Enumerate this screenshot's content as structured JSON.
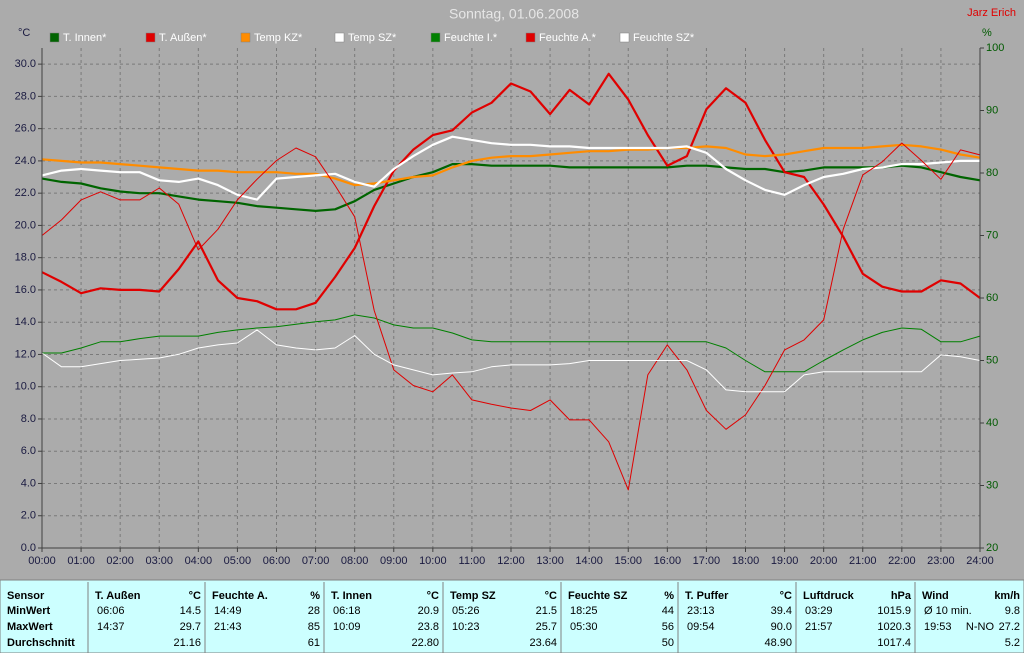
{
  "chart_data": {
    "type": "line",
    "title": "Sonntag, 01.06.2008",
    "annotation": "Jarz Erich",
    "y_label": "°C",
    "y2_label": "%",
    "grid": true,
    "legend": "top",
    "x": [
      0,
      0.5,
      1,
      1.5,
      2,
      2.5,
      3,
      3.5,
      4,
      4.5,
      5,
      5.5,
      6,
      6.5,
      7,
      7.5,
      8,
      8.5,
      9,
      9.5,
      10,
      10.5,
      11,
      11.5,
      12,
      12.5,
      13,
      13.5,
      14,
      14.5,
      15,
      15.5,
      16,
      16.5,
      17,
      17.5,
      18,
      18.5,
      19,
      19.5,
      20,
      20.5,
      21,
      21.5,
      22,
      22.5,
      23,
      23.5,
      24
    ],
    "xlim": [
      0,
      24
    ],
    "xticks": [
      {
        "value": 0,
        "label": "00:00"
      },
      {
        "value": 1,
        "label": "01:00"
      },
      {
        "value": 2,
        "label": "02:00"
      },
      {
        "value": 3,
        "label": "03:00"
      },
      {
        "value": 4,
        "label": "04:00"
      },
      {
        "value": 5,
        "label": "05:00"
      },
      {
        "value": 6,
        "label": "06:00"
      },
      {
        "value": 7,
        "label": "07:00"
      },
      {
        "value": 8,
        "label": "08:00"
      },
      {
        "value": 9,
        "label": "09:00"
      },
      {
        "value": 10,
        "label": "10:00"
      },
      {
        "value": 11,
        "label": "11:00"
      },
      {
        "value": 12,
        "label": "12:00"
      },
      {
        "value": 13,
        "label": "13:00"
      },
      {
        "value": 14,
        "label": "14:00"
      },
      {
        "value": 15,
        "label": "15:00"
      },
      {
        "value": 16,
        "label": "16:00"
      },
      {
        "value": 17,
        "label": "17:00"
      },
      {
        "value": 18,
        "label": "18:00"
      },
      {
        "value": 19,
        "label": "19:00"
      },
      {
        "value": 20,
        "label": "20:00"
      },
      {
        "value": 21,
        "label": "21:00"
      },
      {
        "value": 22,
        "label": "22:00"
      },
      {
        "value": 23,
        "label": "23:00"
      },
      {
        "value": 24,
        "label": "24:00"
      }
    ],
    "ylim": [
      0,
      31
    ],
    "yticks": [
      {
        "value": 0,
        "label": "0.0"
      },
      {
        "value": 2,
        "label": "2.0"
      },
      {
        "value": 4,
        "label": "4.0"
      },
      {
        "value": 6,
        "label": "6.0"
      },
      {
        "value": 8,
        "label": "8.0"
      },
      {
        "value": 10,
        "label": "10.0"
      },
      {
        "value": 12,
        "label": "12.0"
      },
      {
        "value": 14,
        "label": "14.0"
      },
      {
        "value": 16,
        "label": "16.0"
      },
      {
        "value": 18,
        "label": "18.0"
      },
      {
        "value": 20,
        "label": "20.0"
      },
      {
        "value": 22,
        "label": "22.0"
      },
      {
        "value": 24,
        "label": "24.0"
      },
      {
        "value": 26,
        "label": "26.0"
      },
      {
        "value": 28,
        "label": "28.0"
      },
      {
        "value": 30,
        "label": "30.0"
      }
    ],
    "y2lim": [
      20,
      100
    ],
    "y2ticks": [
      20,
      30,
      40,
      50,
      60,
      70,
      80,
      90,
      100
    ],
    "series": [
      {
        "name": "T. Innen*",
        "color": "#006400",
        "values": [
          22.9,
          22.7,
          22.6,
          22.3,
          22.1,
          22.0,
          22.0,
          21.8,
          21.6,
          21.5,
          21.4,
          21.2,
          21.1,
          21.0,
          20.9,
          21.0,
          21.5,
          22.2,
          22.6,
          23.0,
          23.3,
          23.8,
          23.8,
          23.7,
          23.7,
          23.7,
          23.7,
          23.6,
          23.6,
          23.6,
          23.6,
          23.6,
          23.6,
          23.7,
          23.7,
          23.6,
          23.5,
          23.5,
          23.3,
          23.4,
          23.6,
          23.6,
          23.6,
          23.6,
          23.7,
          23.6,
          23.3,
          23.0,
          22.8
        ]
      },
      {
        "name": "T. Außen*",
        "color": "#e00000",
        "values": [
          17.1,
          16.5,
          15.8,
          16.1,
          16.0,
          16.0,
          15.9,
          17.3,
          19.0,
          16.6,
          15.5,
          15.3,
          14.8,
          14.8,
          15.2,
          16.8,
          18.6,
          21.2,
          23.4,
          24.7,
          25.6,
          25.9,
          27.0,
          27.6,
          28.8,
          28.3,
          26.9,
          28.4,
          27.5,
          29.4,
          27.8,
          25.6,
          23.7,
          24.3,
          27.2,
          28.5,
          27.6,
          25.3,
          23.3,
          23.0,
          21.3,
          19.3,
          17.0,
          16.2,
          15.9,
          15.9,
          16.6,
          16.4,
          15.5
        ]
      },
      {
        "name": "Temp KZ*",
        "color": "#ff8c00",
        "values": [
          24.1,
          24.0,
          23.9,
          23.9,
          23.8,
          23.7,
          23.6,
          23.5,
          23.4,
          23.4,
          23.3,
          23.3,
          23.3,
          23.2,
          23.2,
          22.9,
          22.5,
          22.6,
          22.8,
          23.0,
          23.1,
          23.6,
          24.0,
          24.2,
          24.3,
          24.3,
          24.4,
          24.5,
          24.6,
          24.6,
          24.7,
          24.7,
          24.8,
          24.8,
          24.9,
          24.8,
          24.4,
          24.3,
          24.4,
          24.6,
          24.8,
          24.8,
          24.8,
          24.9,
          25.0,
          24.9,
          24.7,
          24.4,
          24.2
        ]
      },
      {
        "name": "Temp SZ*",
        "color": "#ffffff",
        "values": [
          23.1,
          23.4,
          23.5,
          23.4,
          23.3,
          23.3,
          22.8,
          22.7,
          22.9,
          22.5,
          21.9,
          21.6,
          22.9,
          23.0,
          23.1,
          23.2,
          22.7,
          22.4,
          23.5,
          24.3,
          25.0,
          25.5,
          25.3,
          25.1,
          25.0,
          25.0,
          24.9,
          24.9,
          24.8,
          24.8,
          24.8,
          24.8,
          24.8,
          24.9,
          24.5,
          23.5,
          22.8,
          22.2,
          21.9,
          22.5,
          23.0,
          23.2,
          23.5,
          23.6,
          23.8,
          23.8,
          23.9,
          24.0,
          24.0
        ]
      },
      {
        "name": "Feuchte I.*",
        "color": "#008000",
        "axis": "y2",
        "values": [
          51.2,
          51.2,
          52.0,
          53.0,
          53.0,
          53.5,
          53.9,
          53.9,
          53.9,
          54.5,
          54.9,
          55.2,
          55.4,
          55.8,
          56.2,
          56.5,
          57.3,
          56.8,
          55.7,
          55.2,
          55.2,
          54.4,
          53.3,
          53.0,
          53.0,
          53.0,
          53.0,
          53.0,
          53.0,
          53.0,
          53.0,
          53.0,
          53.0,
          53.0,
          53.0,
          52.0,
          50.0,
          48.2,
          48.2,
          48.2,
          50.0,
          51.7,
          53.3,
          54.5,
          55.2,
          55.0,
          53.0,
          53.0,
          53.9
        ]
      },
      {
        "name": "Feuchte A.*",
        "color": "#e00000",
        "axis": "y2",
        "values": [
          70.0,
          72.5,
          75.7,
          77.0,
          75.7,
          75.7,
          77.6,
          75.0,
          67.7,
          71.0,
          75.7,
          79.0,
          82.0,
          84.0,
          82.6,
          78.0,
          73.0,
          58.0,
          48.5,
          46.0,
          45.0,
          47.7,
          43.7,
          43.0,
          42.4,
          42.0,
          43.7,
          40.5,
          40.5,
          37.0,
          29.3,
          47.7,
          52.5,
          48.5,
          42.0,
          39.0,
          41.3,
          46.0,
          51.7,
          53.3,
          56.5,
          71.0,
          79.7,
          81.8,
          84.8,
          82.0,
          79.0,
          83.7,
          82.9
        ]
      },
      {
        "name": "Feuchte SZ*",
        "color": "#ffffff",
        "axis": "y2",
        "values": [
          51.2,
          49.0,
          49.0,
          49.5,
          50.0,
          50.2,
          50.4,
          51.0,
          52.0,
          52.5,
          52.8,
          54.9,
          52.5,
          52.0,
          51.7,
          52.0,
          54.0,
          51.0,
          49.3,
          48.5,
          47.7,
          48.0,
          48.2,
          49.0,
          49.3,
          49.3,
          49.3,
          49.5,
          50.0,
          50.0,
          50.0,
          50.0,
          50.0,
          50.0,
          48.5,
          45.3,
          45.0,
          45.0,
          45.0,
          47.7,
          48.2,
          48.2,
          48.2,
          48.2,
          48.2,
          48.2,
          50.9,
          50.6,
          50.0
        ]
      }
    ]
  },
  "stats": {
    "row_labels": [
      "Sensor",
      "MinWert",
      "MaxWert",
      "Durchschnitt"
    ],
    "columns": [
      {
        "name": "T. Außen",
        "unit": "°C",
        "min_time": "06:06",
        "min": "14.5",
        "max_time": "14:37",
        "max": "29.7",
        "avg": "21.16"
      },
      {
        "name": "Feuchte A.",
        "unit": "%",
        "min_time": "14:49",
        "min": "28",
        "max_time": "21:43",
        "max": "85",
        "avg": "61"
      },
      {
        "name": "T. Innen",
        "unit": "°C",
        "min_time": "06:18",
        "min": "20.9",
        "max_time": "10:09",
        "max": "23.8",
        "avg": "22.80"
      },
      {
        "name": "Temp SZ",
        "unit": "°C",
        "min_time": "05:26",
        "min": "21.5",
        "max_time": "10:23",
        "max": "25.7",
        "avg": "23.64"
      },
      {
        "name": "Feuchte SZ",
        "unit": "%",
        "min_time": "18:25",
        "min": "44",
        "max_time": "05:30",
        "max": "56",
        "avg": "50"
      },
      {
        "name": "T. Puffer",
        "unit": "°C",
        "min_time": "23:13",
        "min": "39.4",
        "max_time": "09:54",
        "max": "90.0",
        "avg": "48.90"
      },
      {
        "name": "Luftdruck",
        "unit": "hPa",
        "min_time": "03:29",
        "min": "1015.9",
        "max_time": "21:57",
        "max": "1020.3",
        "avg": "1017.4"
      },
      {
        "name": "Wind",
        "unit": "km/h",
        "min_time": "Ø 10 min.",
        "min": "9.8",
        "max_time": "19:53",
        "max_note": "N-NO",
        "max": "27.2",
        "avg": "5.2"
      }
    ]
  }
}
